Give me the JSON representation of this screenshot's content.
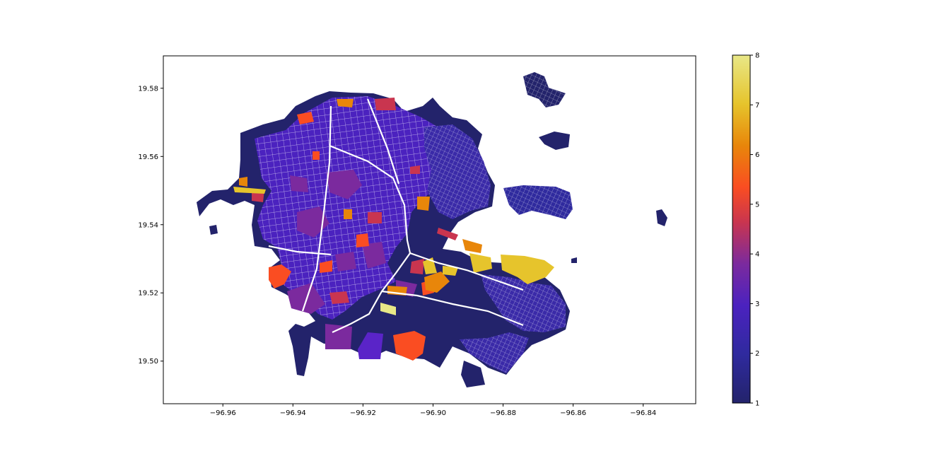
{
  "map": {
    "x_ticks": [
      "−96.96",
      "−96.94",
      "−96.92",
      "−96.90",
      "−96.88",
      "−96.86",
      "−96.84"
    ],
    "x_tick_values": [
      -96.96,
      -96.94,
      -96.92,
      -96.9,
      -96.88,
      -96.86,
      -96.84
    ],
    "y_ticks": [
      "19.58",
      "19.56",
      "19.54",
      "19.52",
      "19.50"
    ],
    "y_tick_values": [
      19.58,
      19.56,
      19.54,
      19.52,
      19.5
    ],
    "xlim": [
      -96.977,
      -96.825
    ],
    "ylim": [
      19.4875,
      19.5895
    ],
    "colormap": "CMRmap-like (navy → violet → red → orange → yellow)",
    "colors": {
      "c1": "#23236b",
      "c2": "#4b22bf",
      "c3": "#7b2a9e",
      "c4": "#c9354f",
      "c5": "#fa4d22",
      "c6": "#e8860a",
      "c7": "#e6c42c",
      "c8": "#e8e787"
    }
  },
  "colorbar": {
    "ticks": [
      "1",
      "2",
      "3",
      "4",
      "5",
      "6",
      "7",
      "8"
    ],
    "range": [
      1,
      8
    ]
  }
}
